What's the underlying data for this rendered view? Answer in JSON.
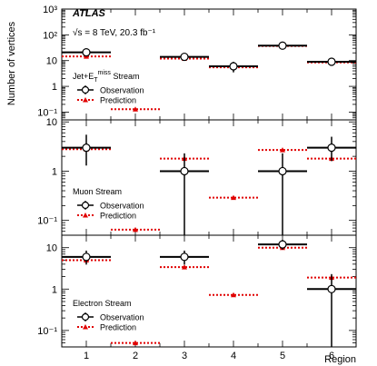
{
  "header": {
    "experiment": "ATLAS",
    "energy": "√s = 8 TeV, 20.3 fb⁻¹"
  },
  "legend": {
    "observation": "Observation",
    "prediction": "Prediction"
  },
  "colors": {
    "observation": "#000000",
    "prediction": "#e00000"
  },
  "chart_data": [
    {
      "type": "scatter",
      "panel": "top",
      "stream_label": "Jet+E_T^miss Stream",
      "ylabel": "Number of vertices",
      "yscale": "log",
      "ylim": [
        0.05,
        1000
      ],
      "yticks": [
        {
          "value": 0.1,
          "label": "10⁻¹"
        },
        {
          "value": 1,
          "label": "1"
        },
        {
          "value": 10,
          "label": "10"
        },
        {
          "value": 100,
          "label": "10²"
        },
        {
          "value": 1000,
          "label": "10³"
        }
      ],
      "regions": [
        1,
        2,
        3,
        4,
        5,
        6
      ],
      "observation": [
        {
          "region": 1,
          "value": 21,
          "lo": 16,
          "hi": 27
        },
        {
          "region": 2,
          "value": null,
          "lo": null,
          "hi": null
        },
        {
          "region": 3,
          "value": 14,
          "lo": 10,
          "hi": 19
        },
        {
          "region": 4,
          "value": 6,
          "lo": 3.5,
          "hi": 9
        },
        {
          "region": 5,
          "value": 38,
          "lo": 32,
          "hi": 45
        },
        {
          "region": 6,
          "value": 9,
          "lo": 6.5,
          "hi": 12.5
        }
      ],
      "prediction": [
        {
          "region": 1,
          "value": 14.5
        },
        {
          "region": 2,
          "value": 0.13
        },
        {
          "region": 3,
          "value": 12
        },
        {
          "region": 4,
          "value": 5.5
        },
        {
          "region": 5,
          "value": 37
        },
        {
          "region": 6,
          "value": 8.5
        }
      ]
    },
    {
      "type": "scatter",
      "panel": "middle",
      "stream_label": "Muon Stream",
      "yscale": "log",
      "ylim": [
        0.05,
        11
      ],
      "yticks": [
        {
          "value": 0.1,
          "label": "10⁻¹"
        },
        {
          "value": 1,
          "label": "1"
        },
        {
          "value": 10,
          "label": "10"
        }
      ],
      "regions": [
        1,
        2,
        3,
        4,
        5,
        6
      ],
      "observation": [
        {
          "region": 1,
          "value": 3,
          "lo": 1.3,
          "hi": 5.5
        },
        {
          "region": 2,
          "value": null,
          "lo": null,
          "hi": null
        },
        {
          "region": 3,
          "value": 1,
          "lo": 0.03,
          "hi": 2.3
        },
        {
          "region": 4,
          "value": null,
          "lo": null,
          "hi": null
        },
        {
          "region": 5,
          "value": 1,
          "lo": 0.03,
          "hi": 2.3
        },
        {
          "region": 6,
          "value": 3,
          "lo": 1.6,
          "hi": 5
        }
      ],
      "prediction": [
        {
          "region": 1,
          "value": 2.8
        },
        {
          "region": 2,
          "value": 0.065
        },
        {
          "region": 3,
          "value": 1.8
        },
        {
          "region": 4,
          "value": 0.29
        },
        {
          "region": 5,
          "value": 2.7
        },
        {
          "region": 6,
          "value": 1.8
        }
      ]
    },
    {
      "type": "scatter",
      "panel": "bottom",
      "stream_label": "Electron Stream",
      "yscale": "log",
      "ylim": [
        0.04,
        20
      ],
      "yticks": [
        {
          "value": 0.1,
          "label": "10⁻¹"
        },
        {
          "value": 1,
          "label": "1"
        },
        {
          "value": 10,
          "label": "10"
        }
      ],
      "xlabel": "Region",
      "regions": [
        1,
        2,
        3,
        4,
        5,
        6
      ],
      "observation": [
        {
          "region": 1,
          "value": 6,
          "lo": 3.9,
          "hi": 8.5
        },
        {
          "region": 2,
          "value": null,
          "lo": null,
          "hi": null
        },
        {
          "region": 3,
          "value": 6,
          "lo": 3.9,
          "hi": 8.5
        },
        {
          "region": 4,
          "value": null,
          "lo": null,
          "hi": null
        },
        {
          "region": 5,
          "value": 12,
          "lo": 9,
          "hi": 15.5
        },
        {
          "region": 6,
          "value": 1,
          "lo": 0.03,
          "hi": 2.3
        }
      ],
      "prediction": [
        {
          "region": 1,
          "value": 5
        },
        {
          "region": 2,
          "value": 0.05
        },
        {
          "region": 3,
          "value": 3.4
        },
        {
          "region": 4,
          "value": 0.72
        },
        {
          "region": 5,
          "value": 10
        },
        {
          "region": 6,
          "value": 1.9
        }
      ]
    }
  ]
}
